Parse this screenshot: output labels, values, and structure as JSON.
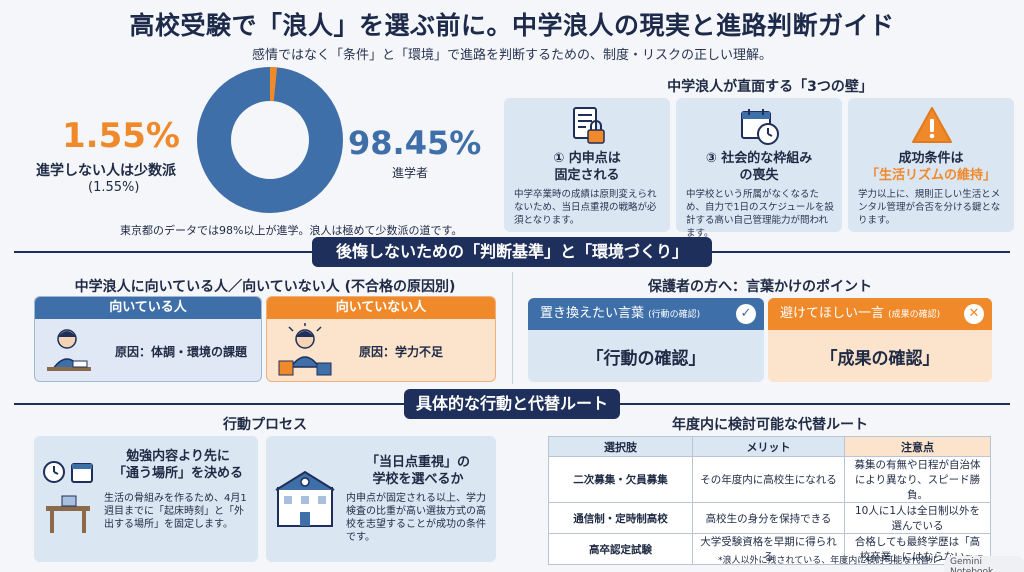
{
  "header": {
    "title": "高校受験で「浪人」を選ぶ前に。中学浪人の現実と進路判断ガイド",
    "subtitle": "感情ではなく「条件」と「環境」で進路を判断するための、制度・リスクの正しい理解。"
  },
  "stats": {
    "minority_pct": "1.55%",
    "minority_label": "進学しない人は少数派",
    "minority_sub": "(1.55%)",
    "majority_pct": "98.45%",
    "majority_label": "進学者",
    "minority_value": 1.55,
    "majority_value": 98.45,
    "note": "東京都のデータでは98%以上が進学。浪人は極めて少数派の道です。",
    "colors": {
      "majority": "#3f6fa8",
      "minority": "#f0892a"
    }
  },
  "walls": {
    "title": "中学浪人が直面する「3つの壁」",
    "items": [
      {
        "head1": "① 内申点は",
        "head2": "固定される",
        "body": "中学卒業時の成績は原則変えられないため、当日点重視の戦略が必須となります。",
        "icon": "document-lock-icon"
      },
      {
        "head1": "③ 社会的な枠組み",
        "head2": "の喪失",
        "body": "中学校という所属がなくなるため、自力で1日のスケジュールを設計する高い自己管理能力が問われます。",
        "icon": "calendar-clock-icon"
      },
      {
        "head1": "成功条件は",
        "head2": "「生活リズムの維持」",
        "body": "学力以上に、規則正しい生活とメンタル管理が合否を分ける鍵となります。",
        "icon": "warning-icon"
      }
    ]
  },
  "section1": {
    "banner": "後悔しないための「判断基準」と「環境づくり」"
  },
  "fit": {
    "title": "中学浪人に向いている人／向いていない人 (不合格の原因別)",
    "good_head": "向いている人",
    "good_body": "原因：体調・環境の課題",
    "bad_head": "向いていない人",
    "bad_body": "原因：学力不足"
  },
  "words": {
    "title": "保護者の方へ：言葉かけのポイント",
    "replace_head": "置き換えたい言葉",
    "replace_sub": "(行動の確認)",
    "replace_big": "「行動の確認」",
    "avoid_head": "避けてほしい一言",
    "avoid_sub": "(成果の確認)",
    "avoid_big": "「成果の確認」"
  },
  "section2": {
    "banner": "具体的な行動と代替ルート"
  },
  "process": {
    "title": "行動プロセス",
    "a1_title1": "勉強内容より先に",
    "a1_title2": "「通う場所」を決める",
    "a1_body": "生活の骨組みを作るため、4月1週目までに「起床時刻」と「外出する場所」を固定します。",
    "a2_title1": "「当日点重視」の",
    "a2_title2": "学校を選べるか",
    "a2_body": "内申点が固定される以上、学力検査の比重が高い選抜方式の高校を志望することが成功の条件です。"
  },
  "routes": {
    "title": "年度内に検討可能な代替ルート",
    "headers": [
      "選択肢",
      "メリット",
      "注意点"
    ],
    "rows": [
      [
        "二次募集・欠員募集",
        "その年度内に高校生になれる",
        "募集の有無や日程が自治体により異なり、スピード勝負。"
      ],
      [
        "通信制・定時制高校",
        "高校生の身分を保持できる",
        "10人に1人は全日制以外を選んでいる"
      ],
      [
        "高卒認定試験",
        "大学受験資格を早期に得られる",
        "合格しても最終学歴は「高校卒業」にはならない。"
      ]
    ],
    "footnote": "*浪人以外に残されている、年度内に検討可能な代替ルートの整理",
    "brand": "Gemini Notebook"
  }
}
